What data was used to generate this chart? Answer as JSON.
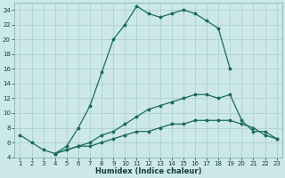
{
  "xlabel": "Humidex (Indice chaleur)",
  "bg_color": "#cce8e8",
  "grid_color": "#aacccc",
  "line_color": "#1a6b5a",
  "xlim": [
    0.5,
    23.5
  ],
  "ylim": [
    4,
    25
  ],
  "xticks": [
    1,
    2,
    3,
    4,
    5,
    6,
    7,
    8,
    9,
    10,
    11,
    12,
    13,
    14,
    15,
    16,
    17,
    18,
    19,
    20,
    21,
    22,
    23
  ],
  "yticks": [
    4,
    6,
    8,
    10,
    12,
    14,
    16,
    18,
    20,
    22,
    24
  ],
  "line1_x": [
    1,
    2,
    3,
    4,
    5,
    6,
    7,
    8,
    9,
    10,
    11,
    12,
    13,
    14,
    15,
    16,
    17,
    18,
    19
  ],
  "line1_y": [
    7,
    6,
    5,
    4.5,
    5.5,
    8.0,
    11.0,
    15.5,
    20.0,
    22.0,
    24.5,
    23.5,
    23.0,
    23.5,
    24.0,
    23.5,
    22.5,
    21.5,
    16.0
  ],
  "line2_x": [
    4,
    5,
    6,
    7,
    8,
    9,
    10,
    11,
    12,
    13,
    14,
    15,
    16,
    17,
    18,
    19,
    20,
    21,
    22,
    23
  ],
  "line2_y": [
    4.5,
    5.0,
    5.5,
    6.0,
    7.0,
    7.5,
    8.5,
    9.5,
    10.5,
    11.0,
    11.5,
    12.0,
    12.5,
    12.5,
    12.0,
    12.5,
    9.0,
    7.5,
    7.5,
    6.5
  ],
  "line3_x": [
    4,
    5,
    6,
    7,
    8,
    9,
    10,
    11,
    12,
    13,
    14,
    15,
    16,
    17,
    18,
    19,
    20,
    21,
    22,
    23
  ],
  "line3_y": [
    4.5,
    5.0,
    5.5,
    5.5,
    6.0,
    6.5,
    7.0,
    7.5,
    7.5,
    8.0,
    8.5,
    8.5,
    9.0,
    9.0,
    9.0,
    9.0,
    8.5,
    8.0,
    7.0,
    6.5
  ]
}
